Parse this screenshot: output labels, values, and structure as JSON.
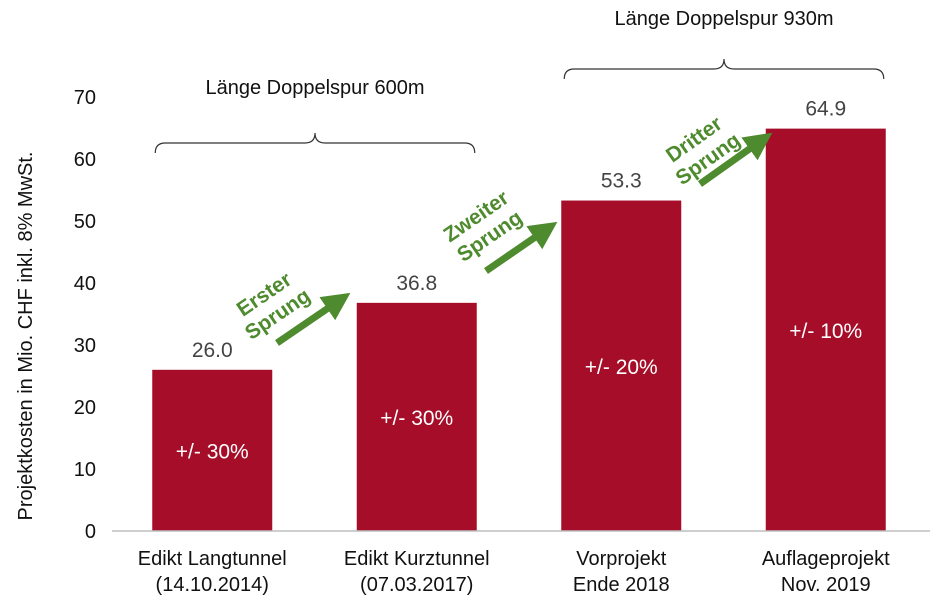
{
  "chart_data": {
    "type": "bar",
    "title": "",
    "ylabel": "Projektkosten in Mio. CHF inkl. 8% MwSt.",
    "xlabel": "",
    "ylim": [
      0,
      70
    ],
    "yticks": [
      0,
      10,
      20,
      30,
      40,
      50,
      60,
      70
    ],
    "grid": false,
    "categories": [
      [
        "Edikt Langtunnel",
        "(14.10.2014)"
      ],
      [
        "Edikt Kurztunnel",
        "(07.03.2017)"
      ],
      [
        "Vorprojekt",
        "Ende 2018"
      ],
      [
        "Auflageprojekt",
        "Nov. 2019"
      ]
    ],
    "values": [
      26.0,
      36.8,
      53.3,
      64.9
    ],
    "value_labels": [
      "26.0",
      "36.8",
      "53.3",
      "64.9"
    ],
    "inbar_labels": [
      "+/- 30%",
      "+/- 30%",
      "+/- 20%",
      "+/- 10%"
    ],
    "brackets": [
      {
        "label": "Länge Doppelspur 600m",
        "from_category": 0,
        "to_category": 1
      },
      {
        "label": "Länge Doppelspur 930m",
        "from_category": 2,
        "to_category": 3
      }
    ],
    "jumps": [
      {
        "lines": [
          "Erster",
          "Sprung"
        ],
        "from_category": 0,
        "to_category": 1
      },
      {
        "lines": [
          "Zweiter",
          "Sprung"
        ],
        "from_category": 1,
        "to_category": 2
      },
      {
        "lines": [
          "Dritter",
          "Sprung"
        ],
        "from_category": 2,
        "to_category": 3
      }
    ]
  },
  "colors": {
    "bar": "#a50d29",
    "arrow": "#4e8a2e",
    "axis": "#bfbfbf",
    "bracket": "#333333"
  }
}
